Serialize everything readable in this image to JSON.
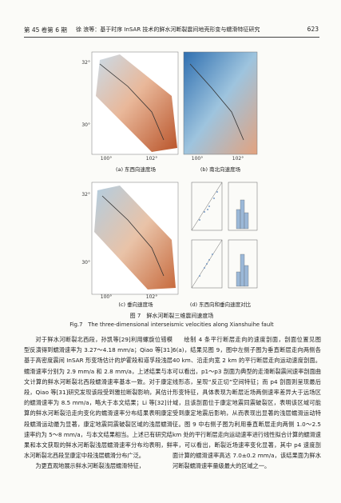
{
  "header": {
    "volume": "第 45 卷第 6 期",
    "running_title": "徐 浪等：基于时序 InSAR 技术的鲜水河断裂震间地壳形变与蠕滑特征研究",
    "page": "623"
  },
  "figure": {
    "panels": [
      {
        "label": "(a) 东西向速度场",
        "ticks": [
          "32°",
          "30°",
          "100°",
          "102°"
        ]
      },
      {
        "label": "(b) 南北向速度场",
        "ticks": [
          "100°",
          "102°"
        ]
      },
      {
        "label": "(c) 垂向速度场",
        "ticks": [
          "32°",
          "30°",
          "100°",
          "102°"
        ]
      },
      {
        "label": "(d) 东西向和垂向速度对比"
      }
    ],
    "caption_zh": "图 7　鲜水河断裂三维震间速度场",
    "caption_en": "Fig.7　The three-dimensional interseismic velocities along Xianshuihe fault"
  },
  "body": {
    "left": [
      "对于鲜水河断裂北西段，孙凯等[29]利用螺旋位错模型反演得到蠕滑速率为 3.27～4.18 mm/a；Qiao 等[31]基于高密度震间 InSAR 形变场估计的炉霍段和道孚段浅层蠕滑速率分别为 2.9 mm/a 和 2.8 mm/a，上述结果与本文计算的鲜水河断裂北西段蠕滑速率基本一致。对于康定段，Qiao 等[31]研究发现该段受到雅拉断裂影响，其估计的蠕滑速率为 8.5 mm/a，略大于本文结果；Li 等[32]计算的鲜水河断裂沿走向变化的蠕滑速率分布结果表明康定段蠕滑运动最为显著，康定地震同震破裂区域的浅层蠕滑速率约为 5～8 mm/a，与本文结果相当。上述已有研究结果和本文获取的鲜水河断裂浅层蠕滑速率分布均表明，鲜水河断裂北西段至康定中段浅层蠕滑分布广泛。",
      "为更直观地展示鲜水河断裂浅层蠕滑特征，"
    ],
    "right": [
      "绘制 4 条平行断层走向的速度剖面，剖面位置见图 6(a)，结果见图 9，图中左侧子图为垂直断层走向两侧各 40 km、沿走向宽 2 km 的平行断层走向运动速度剖面。可以看出，p1～p3 剖面为典型的走滑断裂震间速率剖面曲线形态，呈现“反正切”空间特征；而 p4 剖面则呈现最后形变特征，具体表现为断层近场两侧速率差异大于远场区域，且该剖面位于康定地震同震破裂区，表明该区域可能受到康定地震后影响，从而表现出显著的浅层蠕滑运动特征。图 9 中右侧子图为利用垂直断层走向两侧 1.0～2.5 km 处的平行断层走向运动速率进行线性拟合计算的蠕滑速率，可以看出，断裂近场速率变化显著，其中 p4 速度剖面计算的蠕滑速率高达 7.0±0.2 mm/a，该结果面为鲜水河断裂蠕滑速率量级最大的区域之一。"
    ]
  }
}
